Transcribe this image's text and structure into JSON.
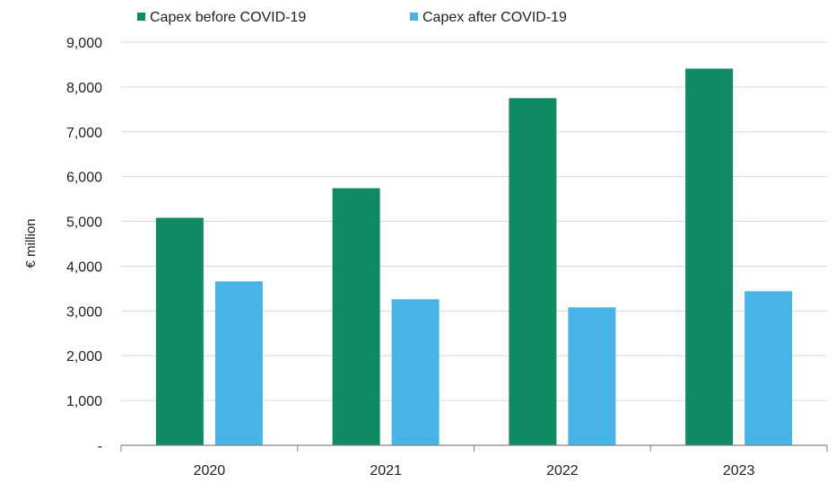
{
  "chart_data": {
    "type": "bar",
    "title": "",
    "xlabel": "",
    "ylabel": "€ million",
    "categories": [
      "2020",
      "2021",
      "2022",
      "2023"
    ],
    "ylim": [
      0,
      9000
    ],
    "yticks": [
      0,
      1000,
      2000,
      3000,
      4000,
      5000,
      6000,
      7000,
      8000,
      9000
    ],
    "ytick_labels": [
      "-",
      "1,000",
      "2,000",
      "3,000",
      "4,000",
      "5,000",
      "6,000",
      "7,000",
      "8,000",
      "9,000"
    ],
    "grid": true,
    "legend_position": "top",
    "series": [
      {
        "name": "Capex before COVID-19",
        "color": "#0f8a62",
        "values": [
          5080,
          5740,
          7750,
          8410
        ]
      },
      {
        "name": "Capex after COVID-19",
        "color": "#48b3e6",
        "values": [
          3660,
          3260,
          3080,
          3440
        ]
      }
    ]
  }
}
